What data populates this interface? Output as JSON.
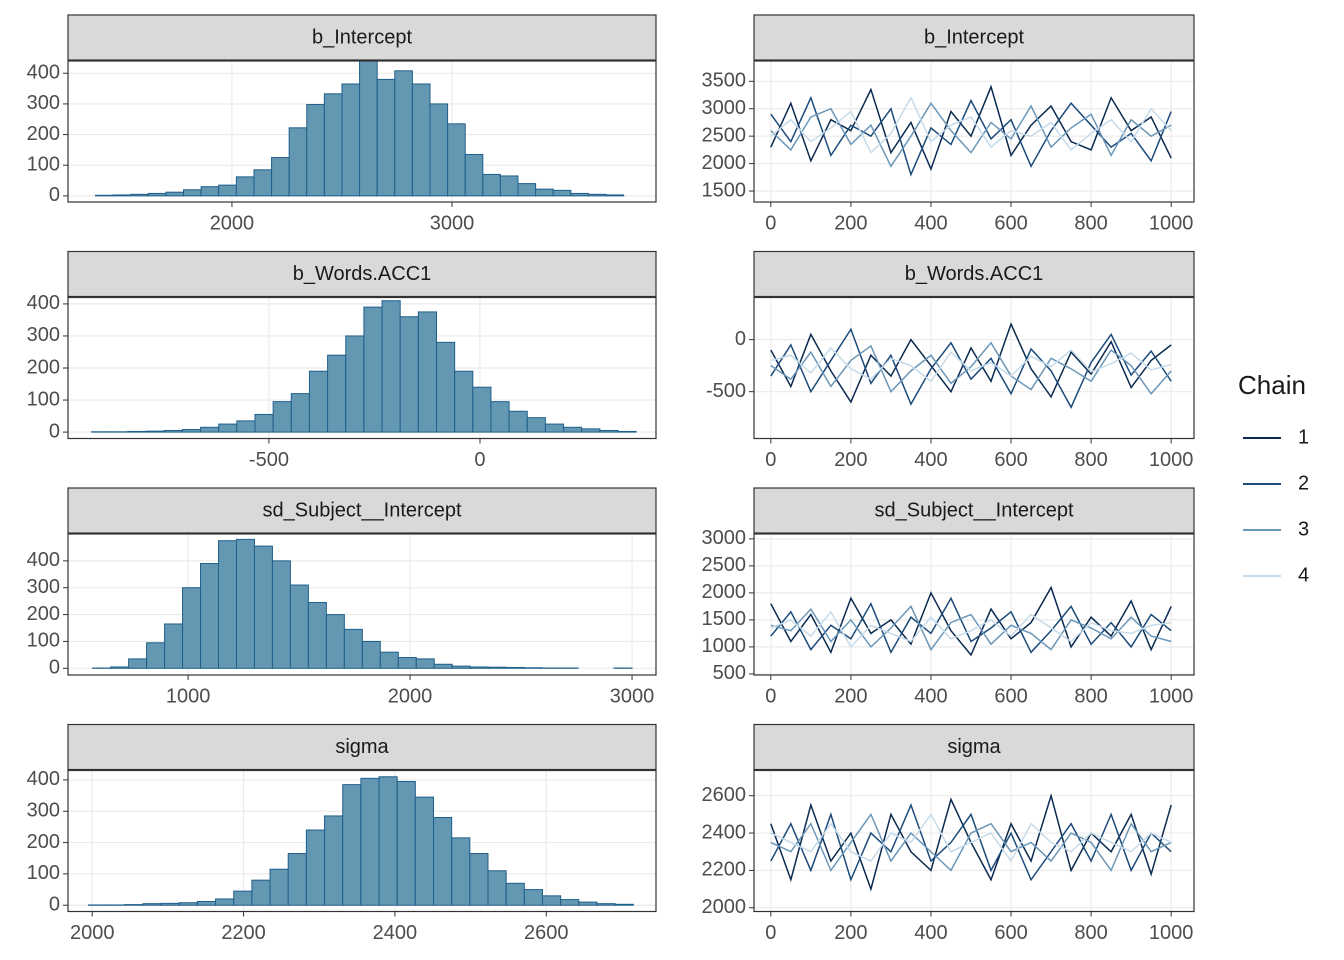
{
  "legend": {
    "title": "Chain"
  },
  "chart_data": [
    {
      "type": "histogram",
      "title": "b_Intercept",
      "color": "#6497b1",
      "edgecolor": "#1f5f8b",
      "grid": true,
      "bins": [
        1380,
        1460,
        1540,
        1620,
        1700,
        1780,
        1860,
        1940,
        2020,
        2100,
        2180,
        2260,
        2340,
        2420,
        2500,
        2580,
        2660,
        2740,
        2820,
        2900,
        2980,
        3060,
        3140,
        3220,
        3300,
        3380,
        3460,
        3540,
        3620,
        3700,
        3780
      ],
      "values": [
        2,
        3,
        5,
        8,
        12,
        20,
        30,
        35,
        62,
        85,
        125,
        222,
        298,
        333,
        365,
        440,
        380,
        408,
        365,
        300,
        235,
        135,
        70,
        65,
        40,
        22,
        18,
        8,
        5,
        3
      ],
      "xlim": [
        1255,
        3927
      ],
      "xticks": [
        2000,
        3000
      ],
      "ylim": [
        -20,
        440
      ],
      "yticks": [
        0,
        100,
        200,
        300,
        400
      ]
    },
    {
      "type": "trace",
      "title": "b_Intercept",
      "grid": true,
      "x": [
        0,
        50,
        100,
        150,
        200,
        250,
        300,
        350,
        400,
        450,
        500,
        550,
        600,
        650,
        700,
        750,
        800,
        850,
        900,
        950,
        1000
      ],
      "series": [
        {
          "name": "1",
          "color": "#0b2a4f",
          "values": [
            2300,
            3100,
            2050,
            2800,
            2600,
            3350,
            2200,
            2750,
            1900,
            2950,
            2500,
            3400,
            2150,
            2700,
            3050,
            2400,
            2250,
            3200,
            2600,
            2850,
            2100
          ]
        },
        {
          "name": "2",
          "color": "#1c4b7a",
          "values": [
            2900,
            2400,
            3200,
            2150,
            2700,
            2500,
            3000,
            1800,
            2650,
            2350,
            3150,
            2450,
            2800,
            1950,
            2600,
            3100,
            2700,
            2300,
            2550,
            2050,
            2950
          ]
        },
        {
          "name": "3",
          "color": "#6b97b8",
          "values": [
            2600,
            2250,
            2850,
            3000,
            2350,
            2700,
            1950,
            2500,
            3100,
            2600,
            2200,
            2750,
            2450,
            3050,
            2300,
            2650,
            2900,
            2150,
            2800,
            2500,
            2700
          ]
        },
        {
          "name": "4",
          "color": "#c6dbea",
          "values": [
            2500,
            2800,
            2400,
            2650,
            2950,
            2200,
            2550,
            3200,
            2400,
            2700,
            2850,
            2300,
            2600,
            2500,
            2750,
            2250,
            2550,
            2800,
            2400,
            3000,
            2600
          ]
        }
      ],
      "xlim": [
        -42,
        1057
      ],
      "xticks": [
        0,
        200,
        400,
        600,
        800,
        1000
      ],
      "ylim": [
        1300,
        3870
      ],
      "yticks": [
        1500,
        2000,
        2500,
        3000,
        3500
      ]
    },
    {
      "type": "histogram",
      "title": "b_Words.ACC1",
      "color": "#6497b1",
      "edgecolor": "#1f5f8b",
      "grid": true,
      "bins": [
        -920,
        -877,
        -834,
        -791,
        -748,
        -705,
        -662,
        -619,
        -576,
        -533,
        -490,
        -447,
        -404,
        -361,
        -318,
        -275,
        -232,
        -189,
        -146,
        -103,
        -60,
        -17,
        26,
        69,
        112,
        155,
        198,
        241,
        284,
        327,
        370
      ],
      "values": [
        1,
        1,
        2,
        3,
        5,
        8,
        15,
        25,
        35,
        55,
        95,
        120,
        190,
        240,
        300,
        390,
        410,
        360,
        375,
        280,
        190,
        140,
        95,
        65,
        45,
        25,
        15,
        10,
        5,
        2
      ],
      "xlim": [
        -976,
        417
      ],
      "xticks": [
        -500,
        0
      ],
      "ylim": [
        -20,
        420
      ],
      "yticks": [
        0,
        100,
        200,
        300,
        400
      ]
    },
    {
      "type": "trace",
      "title": "b_Words.ACC1",
      "grid": true,
      "x": [
        0,
        50,
        100,
        150,
        200,
        250,
        300,
        350,
        400,
        450,
        500,
        550,
        600,
        650,
        700,
        750,
        800,
        850,
        900,
        950,
        1000
      ],
      "series": [
        {
          "name": "1",
          "color": "#0b2a4f",
          "values": [
            -100,
            -450,
            50,
            -300,
            -600,
            -150,
            -350,
            0,
            -250,
            -500,
            -80,
            -400,
            150,
            -280,
            -550,
            -120,
            -330,
            -20,
            -460,
            -200,
            -50
          ]
        },
        {
          "name": "2",
          "color": "#1c4b7a",
          "values": [
            -350,
            -50,
            -500,
            -200,
            100,
            -420,
            -150,
            -620,
            -280,
            -30,
            -380,
            -180,
            -520,
            -90,
            -300,
            -650,
            -220,
            50,
            -340,
            -110,
            -400
          ]
        },
        {
          "name": "3",
          "color": "#6b97b8",
          "values": [
            -250,
            -380,
            -120,
            -450,
            -200,
            -60,
            -500,
            -300,
            -150,
            -420,
            -260,
            -30,
            -350,
            -480,
            -180,
            -280,
            -400,
            -100,
            -250,
            -520,
            -300
          ]
        },
        {
          "name": "4",
          "color": "#c6dbea",
          "values": [
            -200,
            -150,
            -320,
            -80,
            -280,
            -380,
            -180,
            -250,
            -400,
            -120,
            -300,
            -220,
            -350,
            -160,
            -260,
            -100,
            -310,
            -230,
            -130,
            -290,
            -240
          ]
        }
      ],
      "xlim": [
        -42,
        1057
      ],
      "xticks": [
        0,
        200,
        400,
        600,
        800,
        1000
      ],
      "ylim": [
        -950,
        405
      ],
      "yticks": [
        -500,
        0
      ]
    },
    {
      "type": "histogram",
      "title": "sd_Subject__Intercept",
      "color": "#6497b1",
      "edgecolor": "#1f5f8b",
      "grid": true,
      "bins": [
        570,
        651,
        732,
        813,
        894,
        975,
        1056,
        1137,
        1218,
        1299,
        1380,
        1461,
        1542,
        1623,
        1704,
        1785,
        1866,
        1947,
        2028,
        2109,
        2190,
        2271,
        2352,
        2433,
        2514,
        2595,
        2676,
        2757,
        2838,
        2919,
        3000
      ],
      "values": [
        1,
        5,
        35,
        95,
        165,
        300,
        390,
        475,
        480,
        455,
        400,
        310,
        245,
        200,
        145,
        100,
        60,
        40,
        35,
        15,
        8,
        5,
        4,
        3,
        2,
        1,
        1,
        0,
        0,
        1
      ],
      "xlim": [
        459,
        3108
      ],
      "xticks": [
        1000,
        2000,
        3000
      ],
      "ylim": [
        -25,
        500
      ],
      "yticks": [
        0,
        100,
        200,
        300,
        400
      ]
    },
    {
      "type": "trace",
      "title": "sd_Subject__Intercept",
      "grid": true,
      "x": [
        0,
        50,
        100,
        150,
        200,
        250,
        300,
        350,
        400,
        450,
        500,
        550,
        600,
        650,
        700,
        750,
        800,
        850,
        900,
        950,
        1000
      ],
      "series": [
        {
          "name": "1",
          "color": "#0b2a4f",
          "values": [
            1800,
            1100,
            1600,
            900,
            1900,
            1250,
            1500,
            1050,
            2000,
            1300,
            850,
            1700,
            1150,
            1450,
            2100,
            1000,
            1550,
            1200,
            1850,
            950,
            1750
          ]
        },
        {
          "name": "2",
          "color": "#1c4b7a",
          "values": [
            1200,
            1650,
            950,
            1400,
            1150,
            1800,
            900,
            1550,
            1250,
            1900,
            1100,
            1350,
            1650,
            900,
            1300,
            1750,
            1050,
            1450,
            1000,
            1600,
            1300
          ]
        },
        {
          "name": "3",
          "color": "#6b97b8",
          "values": [
            1400,
            1300,
            1700,
            1100,
            1500,
            1000,
            1350,
            1750,
            950,
            1450,
            1600,
            1050,
            1400,
            1250,
            950,
            1500,
            1350,
            1150,
            1550,
            1200,
            1100
          ]
        },
        {
          "name": "4",
          "color": "#c6dbea",
          "values": [
            1350,
            1500,
            1200,
            1650,
            1000,
            1400,
            1250,
            1100,
            1550,
            1150,
            1300,
            1500,
            1200,
            1600,
            1350,
            1100,
            1450,
            1300,
            1250,
            1400,
            1450
          ]
        }
      ],
      "xlim": [
        -42,
        1057
      ],
      "xticks": [
        0,
        200,
        400,
        600,
        800,
        1000
      ],
      "ylim": [
        480,
        3090
      ],
      "yticks": [
        500,
        1000,
        1500,
        2000,
        2500,
        3000
      ]
    },
    {
      "type": "histogram",
      "title": "sigma",
      "color": "#6497b1",
      "edgecolor": "#1f5f8b",
      "grid": true,
      "bins": [
        1995,
        2019,
        2043,
        2067,
        2091,
        2115,
        2139,
        2163,
        2187,
        2211,
        2235,
        2259,
        2283,
        2307,
        2331,
        2355,
        2379,
        2403,
        2427,
        2451,
        2475,
        2499,
        2523,
        2547,
        2571,
        2595,
        2619,
        2643,
        2667,
        2691,
        2715
      ],
      "values": [
        1,
        1,
        2,
        5,
        6,
        8,
        12,
        20,
        45,
        80,
        115,
        165,
        240,
        285,
        385,
        405,
        410,
        395,
        345,
        280,
        215,
        165,
        110,
        70,
        50,
        30,
        18,
        10,
        5,
        3
      ],
      "xlim": [
        1968,
        2745
      ],
      "xticks": [
        2000,
        2200,
        2400,
        2600
      ],
      "ylim": [
        -20,
        430
      ],
      "yticks": [
        0,
        100,
        200,
        300,
        400
      ]
    },
    {
      "type": "trace",
      "title": "sigma",
      "grid": true,
      "x": [
        0,
        50,
        100,
        150,
        200,
        250,
        300,
        350,
        400,
        450,
        500,
        550,
        600,
        650,
        700,
        750,
        800,
        850,
        900,
        950,
        1000
      ],
      "series": [
        {
          "name": "1",
          "color": "#0b2a4f",
          "values": [
            2450,
            2150,
            2550,
            2250,
            2400,
            2100,
            2500,
            2300,
            2200,
            2580,
            2350,
            2150,
            2450,
            2250,
            2600,
            2200,
            2400,
            2300,
            2500,
            2180,
            2550
          ]
        },
        {
          "name": "2",
          "color": "#1c4b7a",
          "values": [
            2250,
            2450,
            2200,
            2500,
            2150,
            2400,
            2300,
            2550,
            2250,
            2350,
            2500,
            2200,
            2400,
            2150,
            2300,
            2450,
            2250,
            2500,
            2200,
            2400,
            2300
          ]
        },
        {
          "name": "3",
          "color": "#6b97b8",
          "values": [
            2350,
            2300,
            2450,
            2200,
            2350,
            2500,
            2250,
            2400,
            2300,
            2200,
            2400,
            2450,
            2300,
            2350,
            2250,
            2400,
            2350,
            2200,
            2450,
            2300,
            2350
          ]
        },
        {
          "name": "4",
          "color": "#c6dbea",
          "values": [
            2400,
            2350,
            2300,
            2450,
            2300,
            2250,
            2400,
            2350,
            2500,
            2300,
            2350,
            2400,
            2250,
            2450,
            2350,
            2300,
            2400,
            2350,
            2300,
            2400,
            2350
          ]
        }
      ],
      "xlim": [
        -42,
        1057
      ],
      "xticks": [
        0,
        200,
        400,
        600,
        800,
        1000
      ],
      "ylim": [
        1980,
        2735
      ],
      "yticks": [
        2000,
        2200,
        2400,
        2600
      ]
    }
  ]
}
